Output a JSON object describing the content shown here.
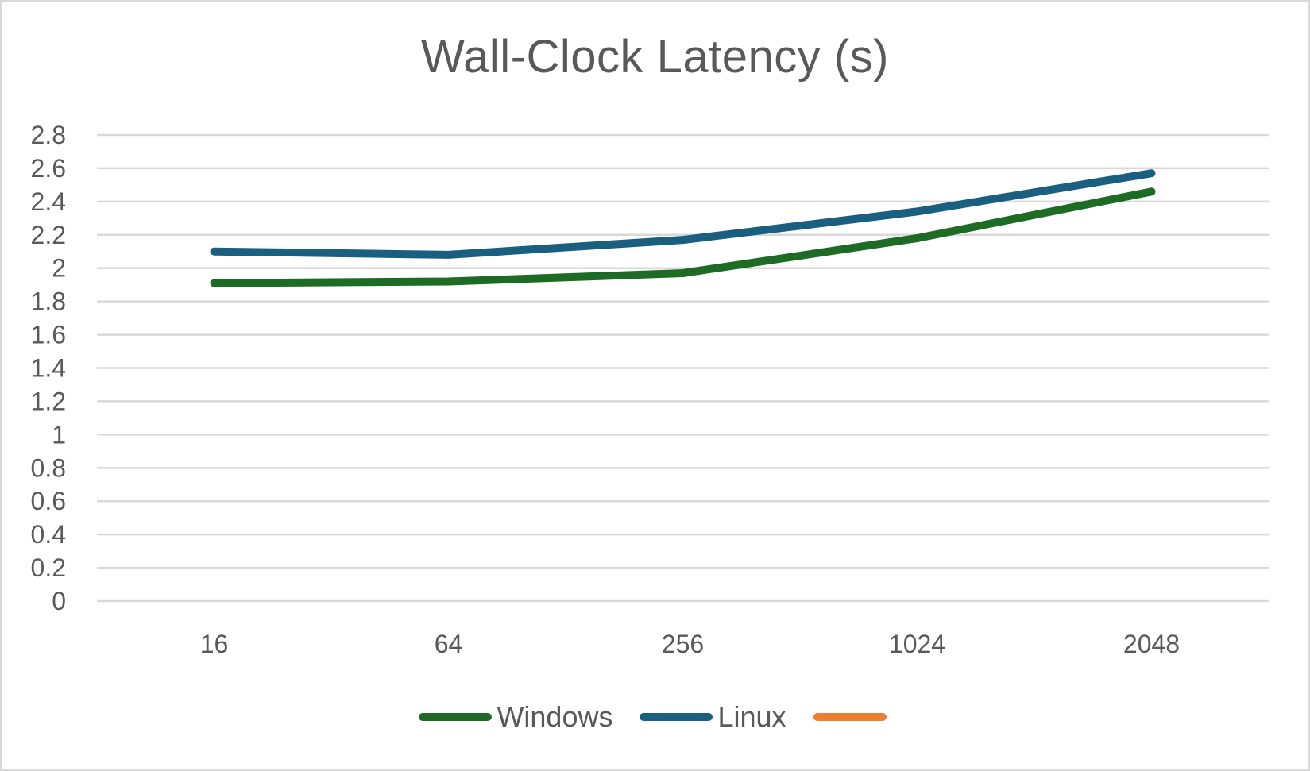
{
  "chart_data": {
    "type": "line",
    "title": "Wall-Clock Latency (s)",
    "xlabel": "",
    "ylabel": "",
    "categories": [
      "16",
      "64",
      "256",
      "1024",
      "2048"
    ],
    "series": [
      {
        "name": "Windows",
        "color": "#1e6b26",
        "values": [
          1.91,
          1.92,
          1.97,
          2.18,
          2.46
        ]
      },
      {
        "name": "Linux",
        "color": "#1a5e80",
        "values": [
          2.1,
          2.08,
          2.17,
          2.34,
          2.57
        ]
      },
      {
        "name": "",
        "color": "#ed7d31",
        "values": []
      }
    ],
    "ylim": [
      0,
      2.8
    ],
    "yticks": [
      "0",
      "0.2",
      "0.4",
      "0.6",
      "0.8",
      "1",
      "1.2",
      "1.4",
      "1.6",
      "1.8",
      "2",
      "2.2",
      "2.4",
      "2.6",
      "2.8"
    ],
    "grid": true,
    "legend_position": "bottom"
  },
  "colors": {
    "gridline": "#d9d9d9",
    "text": "#595959",
    "border": "#d9d9d9"
  }
}
